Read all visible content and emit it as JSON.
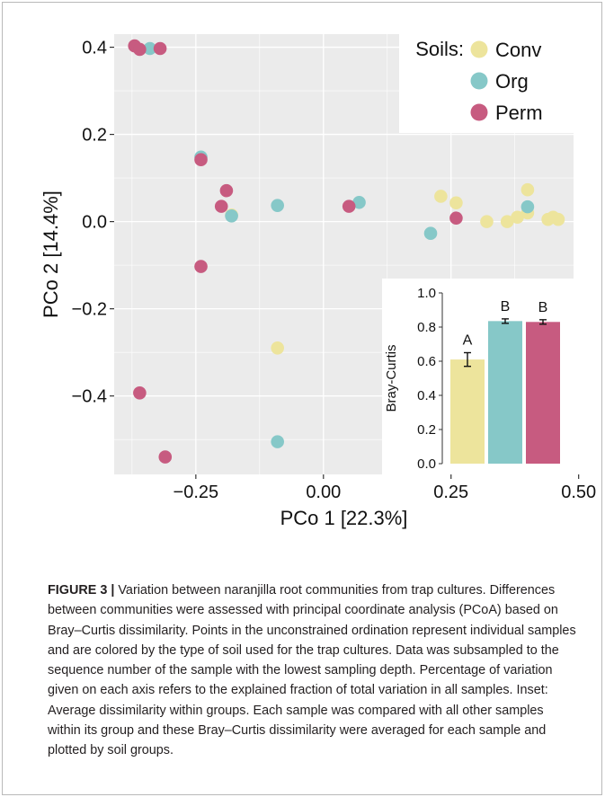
{
  "chart_data": [
    {
      "type": "scatter",
      "title": "",
      "xlabel": "PCo 1 [22.3%]",
      "ylabel": "PCo 2 [14.4%]",
      "xlim": [
        -0.41,
        0.49
      ],
      "ylim": [
        -0.58,
        0.43
      ],
      "xticks": [
        -0.25,
        0.0,
        0.25,
        0.5
      ],
      "xtick_labels": [
        "−0.25",
        "0.00",
        "0.25",
        "0.50"
      ],
      "yticks": [
        0.4,
        0.2,
        0.0,
        -0.2,
        -0.4
      ],
      "ytick_labels": [
        "0.4",
        "0.2",
        "0.0",
        "−0.2",
        "−0.4"
      ],
      "grid": true,
      "legend_title": "Soils:",
      "legend_position": "top-right",
      "series": [
        {
          "name": "Conv",
          "color": "#ede49c",
          "points": [
            [
              -0.18,
              0.015
            ],
            [
              -0.09,
              -0.29
            ],
            [
              0.23,
              0.058
            ],
            [
              0.26,
              0.043
            ],
            [
              0.32,
              0.0
            ],
            [
              0.36,
              0.0
            ],
            [
              0.38,
              0.01
            ],
            [
              0.4,
              0.02
            ],
            [
              0.4,
              0.073
            ],
            [
              0.44,
              0.005
            ],
            [
              0.45,
              0.01
            ],
            [
              0.46,
              0.005
            ]
          ]
        },
        {
          "name": "Org",
          "color": "#86c8c8",
          "points": [
            [
              -0.34,
              0.397
            ],
            [
              -0.24,
              0.148
            ],
            [
              -0.18,
              0.013
            ],
            [
              -0.09,
              0.037
            ],
            [
              -0.09,
              -0.505
            ],
            [
              0.07,
              0.044
            ],
            [
              0.21,
              -0.027
            ],
            [
              0.4,
              0.034
            ]
          ]
        },
        {
          "name": "Perm",
          "color": "#c75b80",
          "points": [
            [
              -0.37,
              0.403
            ],
            [
              -0.36,
              0.395
            ],
            [
              -0.32,
              0.397
            ],
            [
              -0.24,
              0.142
            ],
            [
              -0.19,
              0.071
            ],
            [
              -0.2,
              0.035
            ],
            [
              -0.24,
              -0.103
            ],
            [
              0.05,
              0.035
            ],
            [
              0.26,
              0.008
            ],
            [
              -0.36,
              -0.393
            ],
            [
              -0.31,
              -0.54
            ]
          ]
        }
      ]
    },
    {
      "type": "bar",
      "title": "",
      "xlabel": "",
      "ylabel": "Bray-Curtis",
      "ylim": [
        0.0,
        1.0
      ],
      "yticks": [
        0.0,
        0.2,
        0.4,
        0.6,
        0.8,
        1.0
      ],
      "ytick_labels": [
        "0.0",
        "0.2",
        "0.4",
        "0.6",
        "0.8",
        "1.0"
      ],
      "categories": [
        "Conv",
        "Org",
        "Perm"
      ],
      "values": [
        0.61,
        0.835,
        0.83
      ],
      "errors": [
        0.04,
        0.013,
        0.013
      ],
      "letters": [
        "A",
        "B",
        "B"
      ],
      "colors": [
        "#ede49c",
        "#86c8c8",
        "#c75b80"
      ]
    }
  ],
  "caption": {
    "label": "FIGURE 3 |",
    "text": " Variation between naranjilla root communities from trap cultures. Differences between communities were assessed with principal coordinate analysis (PCoA) based on Bray–Curtis dissimilarity. Points in the unconstrained ordination represent individual samples and are colored by the type of soil used for the trap cultures. Data was subsampled to the sequence number of the sample with the lowest sampling depth. Percentage of variation given on each axis refers to the explained fraction of total variation in all samples. Inset: Average dissimilarity within groups. Each sample was compared with all other samples within its group and these Bray–Curtis dissimilarity were averaged for each sample and plotted by soil groups."
  },
  "colors": {
    "panel_background": "#ebebeb",
    "gridline": "#ffffff",
    "conv": "#ede49c",
    "org": "#86c8c8",
    "perm": "#c75b80"
  }
}
